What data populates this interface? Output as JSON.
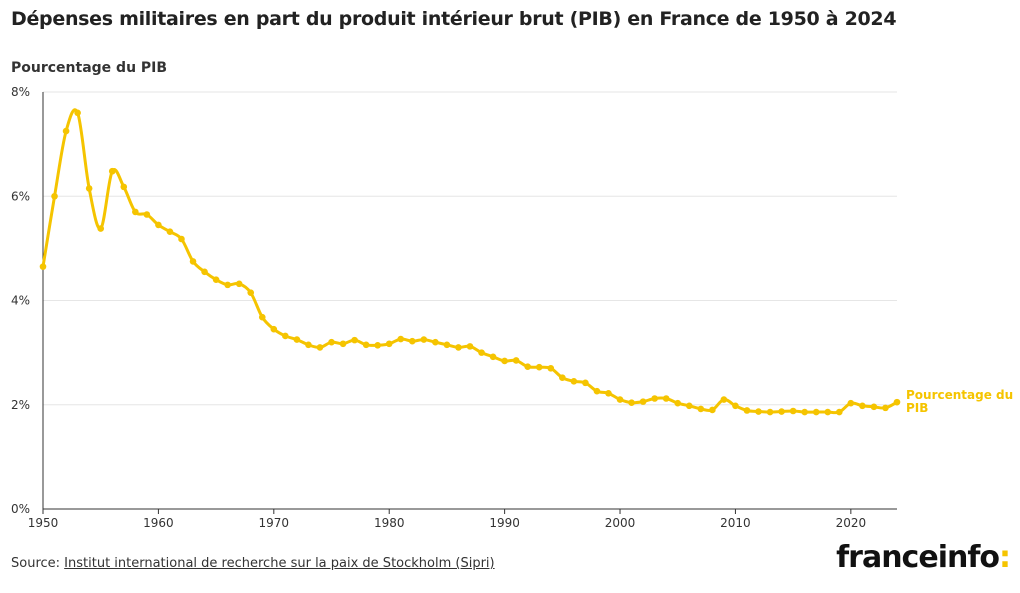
{
  "header": {
    "title": "Dépenses militaires en part du produit intérieur brut (PIB) en France de 1950 à 2024",
    "y_axis_title": "Pourcentage du PIB"
  },
  "footer": {
    "source_prefix": "Source:",
    "source_link": "Institut international de recherche sur la paix de Stockholm (Sipri)",
    "logo_text": "franceinfo",
    "logo_colon": ":"
  },
  "colors": {
    "series": "#f5c400",
    "grid": "#e6e6e6",
    "axis": "#333333"
  },
  "chart_data": {
    "type": "line",
    "title": "Dépenses militaires en part du produit intérieur brut (PIB) en France de 1950 à 2024",
    "xlabel": "",
    "ylabel": "Pourcentage du PIB",
    "xlim": [
      1950,
      2024
    ],
    "ylim": [
      0,
      8
    ],
    "x_ticks": [
      1950,
      1960,
      1970,
      1980,
      1990,
      2000,
      2010,
      2020
    ],
    "y_ticks": [
      {
        "value": 0,
        "label": "0%"
      },
      {
        "value": 2,
        "label": "2%"
      },
      {
        "value": 4,
        "label": "4%"
      },
      {
        "value": 6,
        "label": "6%"
      },
      {
        "value": 8,
        "label": "8%"
      }
    ],
    "grid": true,
    "series": [
      {
        "name": "Pourcentage du PIB",
        "label_lines": [
          "Pourcentage du",
          "PIB"
        ],
        "x": [
          1950,
          1951,
          1952,
          1953,
          1954,
          1955,
          1956,
          1957,
          1958,
          1959,
          1960,
          1961,
          1962,
          1963,
          1964,
          1965,
          1966,
          1967,
          1968,
          1969,
          1970,
          1971,
          1972,
          1973,
          1974,
          1975,
          1976,
          1977,
          1978,
          1979,
          1980,
          1981,
          1982,
          1983,
          1984,
          1985,
          1986,
          1987,
          1988,
          1989,
          1990,
          1991,
          1992,
          1993,
          1994,
          1995,
          1996,
          1997,
          1998,
          1999,
          2000,
          2001,
          2002,
          2003,
          2004,
          2005,
          2006,
          2007,
          2008,
          2009,
          2010,
          2011,
          2012,
          2013,
          2014,
          2015,
          2016,
          2017,
          2018,
          2019,
          2020,
          2021,
          2022,
          2023,
          2024
        ],
        "values": [
          4.65,
          6.0,
          7.25,
          7.6,
          6.15,
          5.38,
          6.48,
          6.18,
          5.7,
          5.65,
          5.45,
          5.32,
          5.18,
          4.75,
          4.55,
          4.4,
          4.3,
          4.32,
          4.15,
          3.68,
          3.45,
          3.32,
          3.25,
          3.15,
          3.1,
          3.2,
          3.17,
          3.24,
          3.15,
          3.14,
          3.17,
          3.26,
          3.22,
          3.25,
          3.2,
          3.15,
          3.1,
          3.12,
          3.0,
          2.92,
          2.84,
          2.85,
          2.73,
          2.72,
          2.7,
          2.52,
          2.45,
          2.42,
          2.26,
          2.22,
          2.1,
          2.04,
          2.06,
          2.12,
          2.12,
          2.03,
          1.98,
          1.92,
          1.9,
          2.1,
          1.98,
          1.89,
          1.87,
          1.86,
          1.87,
          1.88,
          1.86,
          1.86,
          1.86,
          1.86,
          2.03,
          1.98,
          1.96,
          1.94,
          2.05
        ]
      }
    ]
  }
}
